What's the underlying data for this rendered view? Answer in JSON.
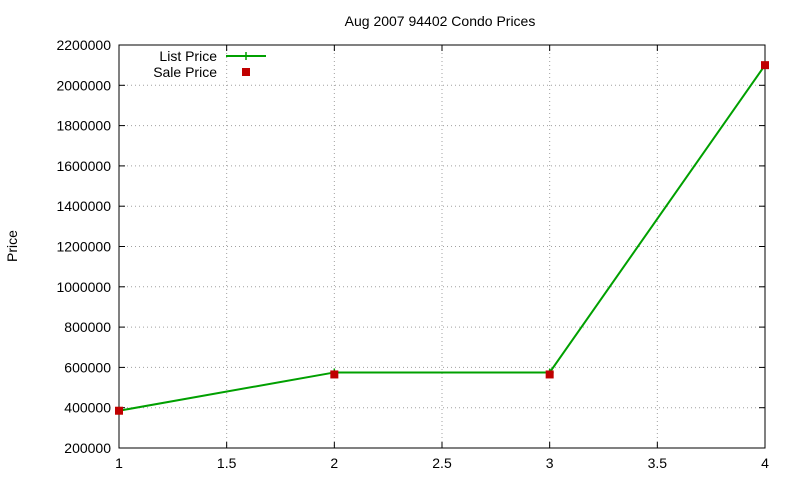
{
  "chart_data": {
    "type": "line",
    "title": "Aug 2007 94402 Condo Prices",
    "xlabel": "",
    "ylabel": "Price",
    "xlim": [
      1,
      4
    ],
    "ylim": [
      200000,
      2200000
    ],
    "x_ticks": [
      1,
      1.5,
      2,
      2.5,
      3,
      3.5,
      4
    ],
    "x_tick_labels": [
      "1",
      "1.5",
      "2",
      "2.5",
      "3",
      "3.5",
      "4"
    ],
    "y_ticks": [
      200000,
      400000,
      600000,
      800000,
      1000000,
      1200000,
      1400000,
      1600000,
      1800000,
      2000000,
      2200000
    ],
    "y_tick_labels": [
      "200000",
      "400000",
      "600000",
      "800000",
      "1000000",
      "1200000",
      "1400000",
      "1600000",
      "1800000",
      "2000000",
      "2200000"
    ],
    "grid": true,
    "legend_position": "top-left",
    "series": [
      {
        "name": "List Price",
        "style": "line-with-plus-markers",
        "color": "#00a000",
        "x": [
          1,
          2,
          3,
          4
        ],
        "values": [
          385000,
          575000,
          575000,
          2100000
        ]
      },
      {
        "name": "Sale Price",
        "style": "square-markers",
        "color": "#c00000",
        "x": [
          1,
          2,
          3,
          4
        ],
        "values": [
          385000,
          565000,
          565000,
          2100000
        ]
      }
    ]
  }
}
